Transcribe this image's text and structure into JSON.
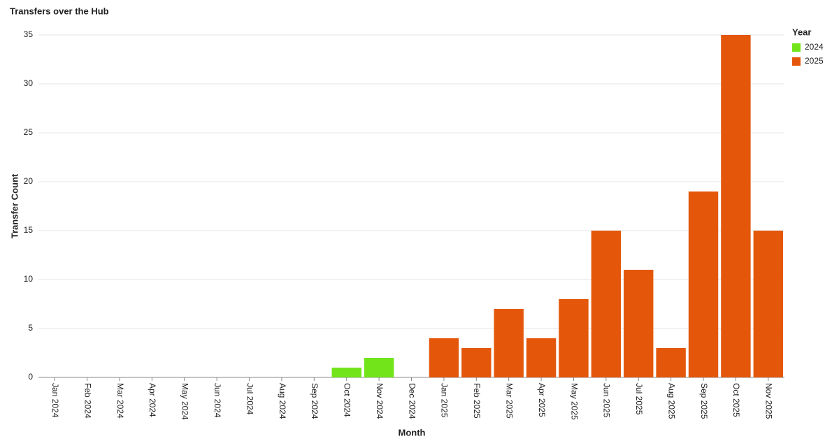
{
  "chart_data": {
    "type": "bar",
    "title": "Transfers over the Hub",
    "x_label": "Month",
    "y_label": "Transfer Count",
    "legend_title": "Year",
    "categories": [
      "Jan 2024",
      "Feb 2024",
      "Mar 2024",
      "Apr 2024",
      "May 2024",
      "Jun 2024",
      "Jul 2024",
      "Aug 2024",
      "Sep 2024",
      "Oct 2024",
      "Nov 2024",
      "Dec 2024",
      "Jan 2025",
      "Feb 2025",
      "Mar 2025",
      "Apr 2025",
      "May 2025",
      "Jun 2025",
      "Jul 2025",
      "Aug 2025",
      "Sep 2025",
      "Oct 2025",
      "Nov 2025"
    ],
    "series": [
      {
        "name": "2024",
        "color": "#72e51a",
        "values": [
          null,
          null,
          null,
          null,
          null,
          null,
          null,
          null,
          null,
          1,
          2,
          null,
          null,
          null,
          null,
          null,
          null,
          null,
          null,
          null,
          null,
          null,
          null
        ]
      },
      {
        "name": "2025",
        "color": "#e4570a",
        "values": [
          null,
          null,
          null,
          null,
          null,
          null,
          null,
          null,
          null,
          null,
          null,
          null,
          4,
          3,
          7,
          4,
          8,
          15,
          11,
          3,
          19,
          35,
          15
        ]
      }
    ],
    "ylim": [
      0,
      35
    ],
    "yticks": [
      0,
      5,
      10,
      15,
      20,
      25,
      30,
      35
    ],
    "grid": true,
    "legend": "top-right"
  }
}
